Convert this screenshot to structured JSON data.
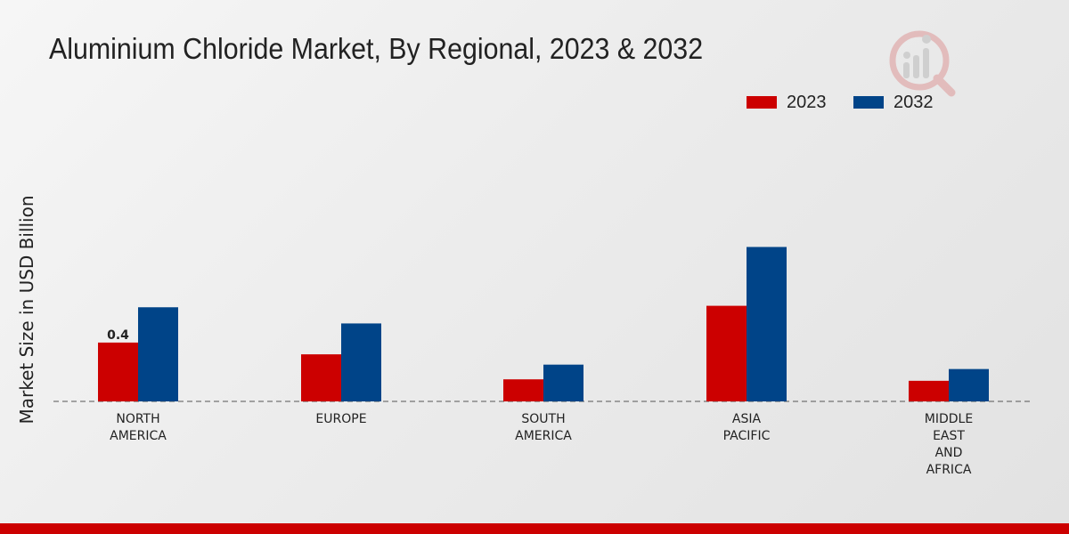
{
  "colors": {
    "series_2023": "#cc0000",
    "series_2032": "#004488",
    "footer": "#cc0000",
    "text": "#222222",
    "baseline": "#555555"
  },
  "watermark_icon": "analytics-logo-icon",
  "chart_data": {
    "type": "bar",
    "title": "Aluminium Chloride Market, By Regional, 2023 & 2032",
    "xlabel": "",
    "ylabel": "Market Size in USD Billion",
    "categories": [
      [
        "NORTH",
        "AMERICA"
      ],
      [
        "EUROPE"
      ],
      [
        "SOUTH",
        "AMERICA"
      ],
      [
        "ASIA",
        "PACIFIC"
      ],
      [
        "MIDDLE",
        "EAST",
        "AND",
        "AFRICA"
      ]
    ],
    "series": [
      {
        "name": "2023",
        "values": [
          0.4,
          0.32,
          0.15,
          0.65,
          0.14
        ]
      },
      {
        "name": "2032",
        "values": [
          0.64,
          0.53,
          0.25,
          1.05,
          0.22
        ]
      }
    ],
    "data_labels": [
      {
        "series": 0,
        "index": 0,
        "text": "0.4"
      }
    ],
    "ylim": [
      0,
      1.65
    ],
    "grid": false,
    "legend": "top-right"
  }
}
